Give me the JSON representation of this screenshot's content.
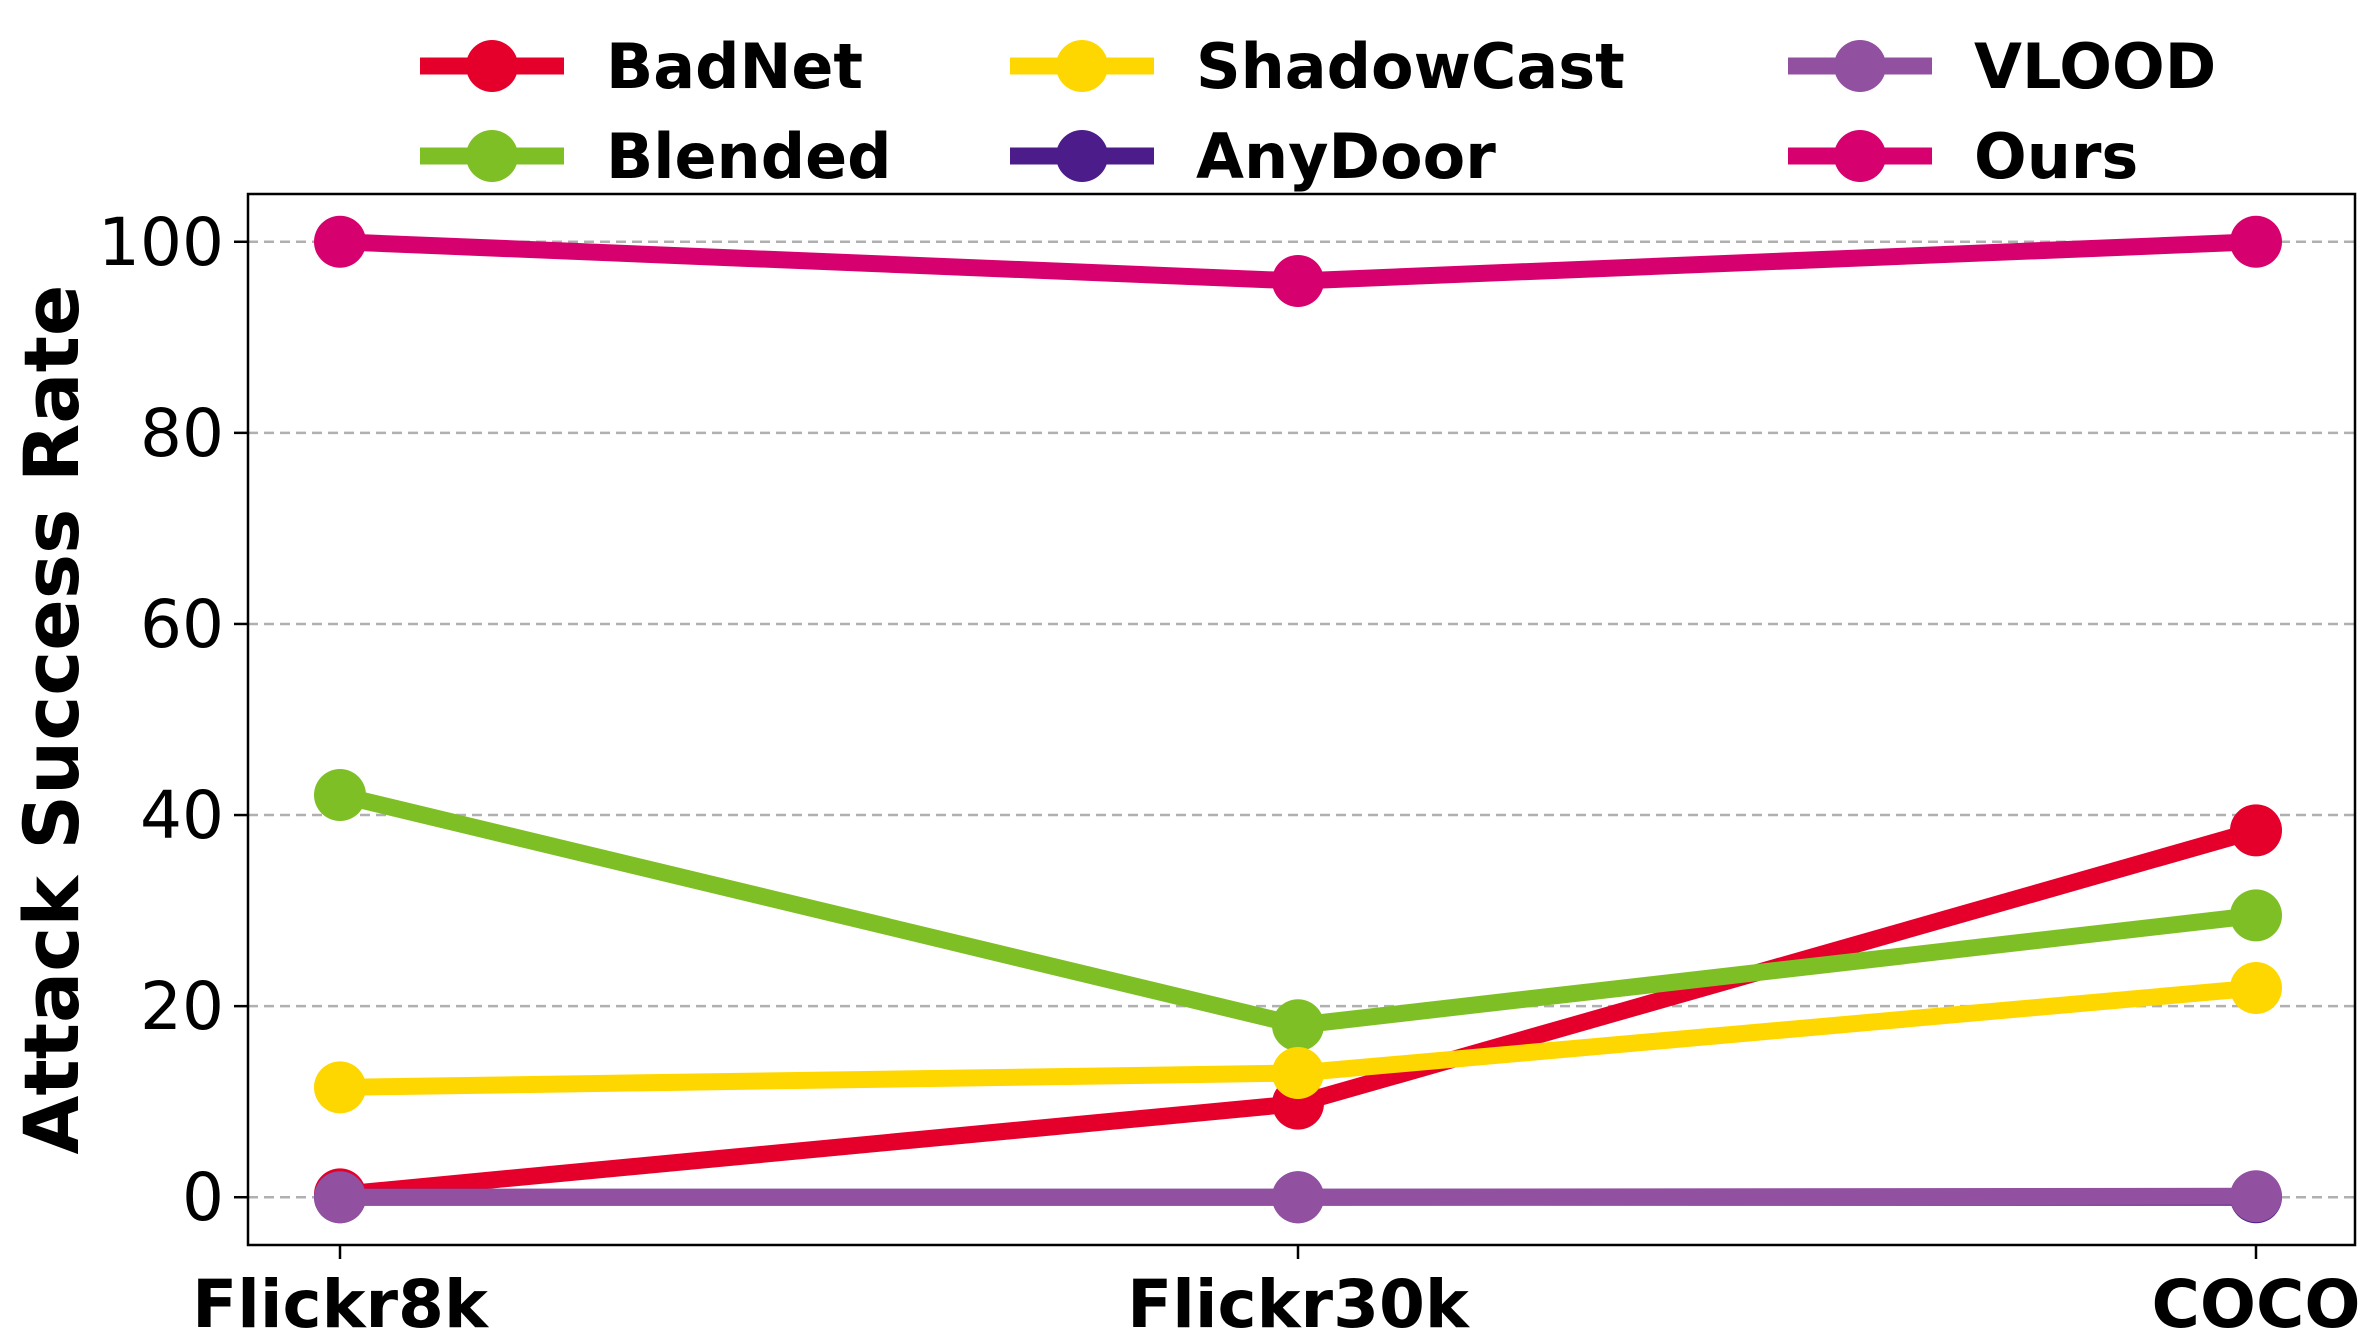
{
  "chart_data": {
    "type": "line",
    "title": "",
    "xlabel": "",
    "ylabel": "Attack Success Rate",
    "categories": [
      "Flickr8k",
      "Flickr30k",
      "COCO"
    ],
    "ylim": [
      -5,
      105
    ],
    "yticks": [
      0,
      20,
      40,
      60,
      80,
      100
    ],
    "grid": "horizontal dashed",
    "legend_position": "top",
    "series": [
      {
        "name": "BadNet",
        "color": "#E4002B",
        "values": [
          0.3,
          9.8,
          38.4
        ]
      },
      {
        "name": "Blended",
        "color": "#7FBF26",
        "values": [
          42.1,
          18.0,
          29.5
        ]
      },
      {
        "name": "ShadowCast",
        "color": "#FFD700",
        "values": [
          11.5,
          13.0,
          21.9
        ]
      },
      {
        "name": "AnyDoor",
        "color": "#4B1C8A",
        "values": [
          0.0,
          0.0,
          0.0
        ]
      },
      {
        "name": "VLOOD",
        "color": "#9150A0",
        "values": [
          0.0,
          0.0,
          0.1
        ]
      },
      {
        "name": "Ours",
        "color": "#D6006E",
        "values": [
          100.0,
          95.9,
          100.0
        ]
      }
    ]
  }
}
